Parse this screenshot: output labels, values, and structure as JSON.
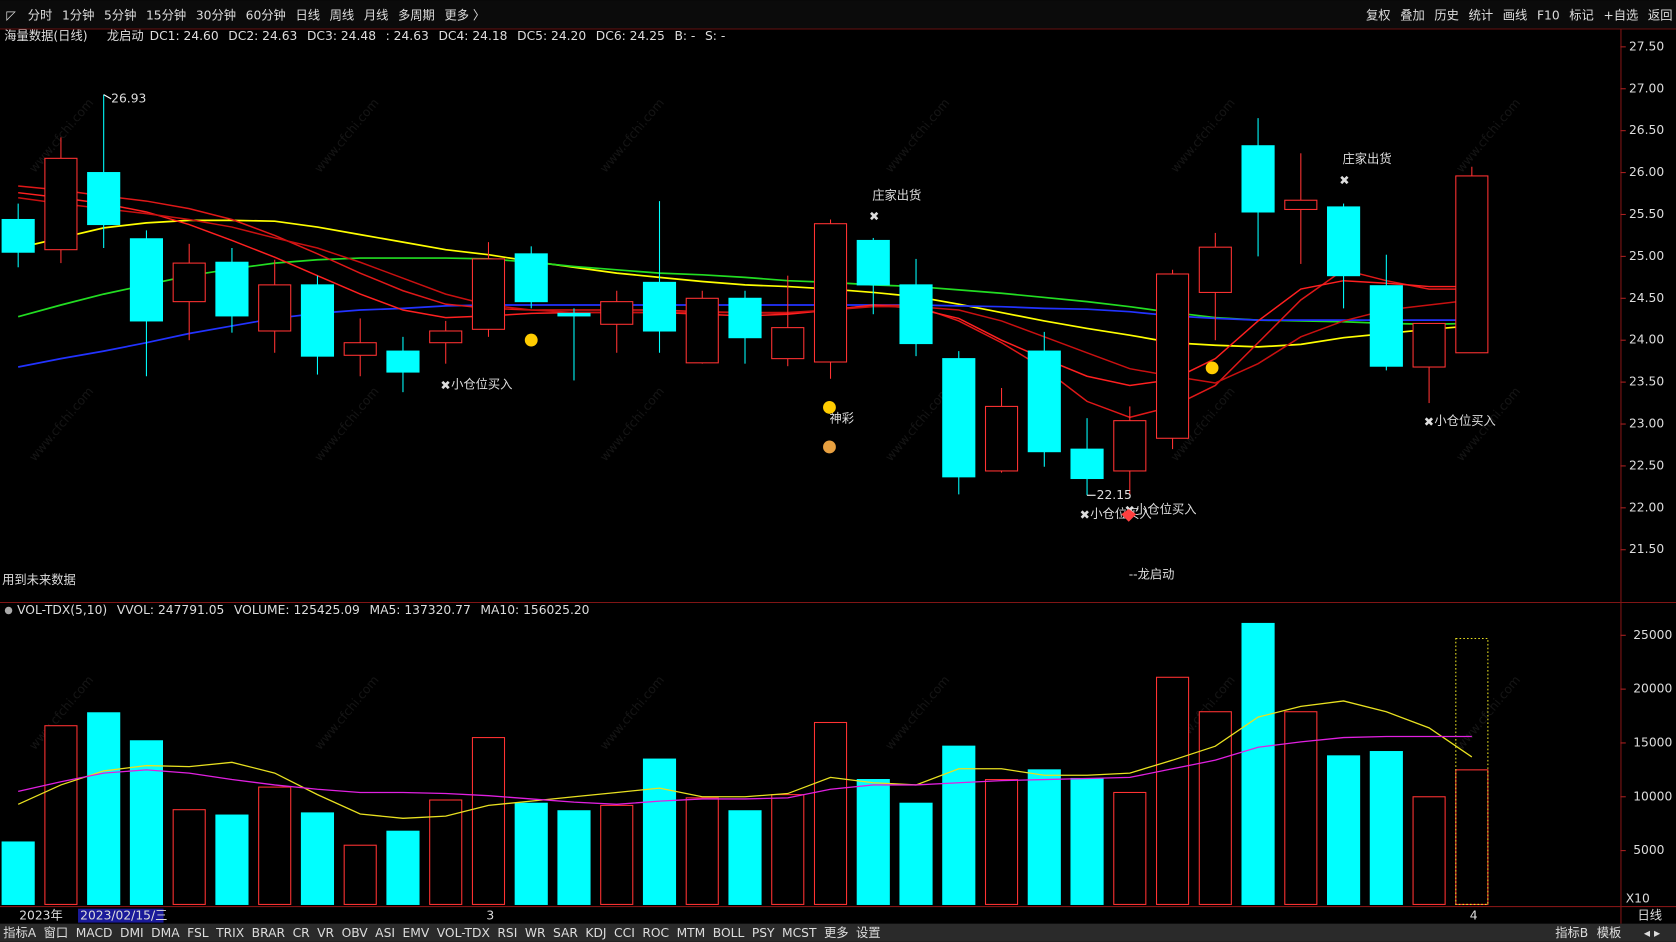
{
  "toolbar": {
    "periods": [
      "分时",
      "1分钟",
      "5分钟",
      "15分钟",
      "30分钟",
      "60分钟",
      "日线",
      "周线",
      "月线",
      "多周期",
      "更多 〉"
    ],
    "active_period": 6,
    "tools": [
      "复权",
      "叠加",
      "历史",
      "统计",
      "画线",
      "F10",
      "标记",
      "+自选",
      "返回"
    ]
  },
  "watermark": "www.cfchi.com",
  "chart_data": [
    {
      "type": "candlestick",
      "title": "海量数据(日线)",
      "subtitle": "龙启动",
      "header": [
        {
          "text": "DC1: 24.60",
          "color": "#ff3c6e"
        },
        {
          "text": "DC2: 24.63",
          "color": "#ff3c6e"
        },
        {
          "text": "DC3: 24.48",
          "color": "#ff3030"
        },
        {
          "text": ": 24.63",
          "color": "#ff3030"
        },
        {
          "text": "DC4: 24.18",
          "color": "#ffff00"
        },
        {
          "text": "DC5: 24.20",
          "color": "#33ff33"
        },
        {
          "text": "DC6: 24.25",
          "color": "#2244ff"
        },
        {
          "text": "B: -",
          "color": "#ffff00"
        },
        {
          "text": "S: -",
          "color": "#33ff33"
        }
      ],
      "up_color": "#ff3232",
      "down_color": "#00ffff",
      "open": [
        25.44,
        25.08,
        26.0,
        25.21,
        24.46,
        24.93,
        24.11,
        24.66,
        23.82,
        23.87,
        23.97,
        24.13,
        25.03,
        24.32,
        24.19,
        24.69,
        23.73,
        24.5,
        23.78,
        23.74,
        25.19,
        24.66,
        23.78,
        22.44,
        23.87,
        22.7,
        22.44,
        22.83,
        24.57,
        26.32,
        25.56,
        25.59,
        24.65,
        23.68,
        23.85
      ],
      "high": [
        25.63,
        26.42,
        26.93,
        25.31,
        25.15,
        25.1,
        24.96,
        24.77,
        24.26,
        24.04,
        24.23,
        25.17,
        25.12,
        24.38,
        24.59,
        25.66,
        24.59,
        24.59,
        24.77,
        25.44,
        25.22,
        24.97,
        23.87,
        23.43,
        24.1,
        23.07,
        23.21,
        24.84,
        25.28,
        26.65,
        26.23,
        25.63,
        25.02,
        24.2,
        26.07
      ],
      "low": [
        24.87,
        24.92,
        25.1,
        23.57,
        24.0,
        24.09,
        23.85,
        23.59,
        23.57,
        23.38,
        23.72,
        24.04,
        24.38,
        23.52,
        23.85,
        23.85,
        23.72,
        23.72,
        23.69,
        23.54,
        24.31,
        23.81,
        22.16,
        22.42,
        22.49,
        22.15,
        22.16,
        22.7,
        24.0,
        25.0,
        24.91,
        24.38,
        23.64,
        23.25,
        23.85
      ],
      "close": [
        25.05,
        26.17,
        25.38,
        24.23,
        24.92,
        24.29,
        24.66,
        23.81,
        23.97,
        23.62,
        24.11,
        24.97,
        24.46,
        24.29,
        24.46,
        24.11,
        24.5,
        24.03,
        24.15,
        25.39,
        24.66,
        23.96,
        22.37,
        23.21,
        22.67,
        22.35,
        23.04,
        24.79,
        25.11,
        25.53,
        25.67,
        24.77,
        23.69,
        24.2,
        25.96
      ],
      "series": [
        {
          "color": "#ffff00",
          "values": [
            25.1,
            25.22,
            25.34,
            25.4,
            25.43,
            25.43,
            25.42,
            25.35,
            25.26,
            25.17,
            25.08,
            25.02,
            24.94,
            24.87,
            24.8,
            24.75,
            24.7,
            24.66,
            24.64,
            24.61,
            24.57,
            24.52,
            24.43,
            24.33,
            24.23,
            24.14,
            24.06,
            23.97,
            23.94,
            23.92,
            23.95,
            24.03,
            24.08,
            24.13,
            24.17
          ]
        },
        {
          "color": "#22dd22",
          "values": [
            24.28,
            24.42,
            24.55,
            24.66,
            24.77,
            24.85,
            24.92,
            24.96,
            24.98,
            24.98,
            24.98,
            24.97,
            24.93,
            24.88,
            24.84,
            24.8,
            24.78,
            24.75,
            24.71,
            24.69,
            24.66,
            24.64,
            24.6,
            24.56,
            24.51,
            24.46,
            24.4,
            24.33,
            24.27,
            24.24,
            24.23,
            24.22,
            24.2,
            24.19,
            24.2
          ]
        },
        {
          "color": "#2233ff",
          "values": [
            23.68,
            23.78,
            23.87,
            23.97,
            24.08,
            24.17,
            24.26,
            24.32,
            24.36,
            24.38,
            24.41,
            24.42,
            24.42,
            24.42,
            24.42,
            24.42,
            24.42,
            24.42,
            24.42,
            24.42,
            24.42,
            24.42,
            24.41,
            24.4,
            24.38,
            24.37,
            24.34,
            24.29,
            24.26,
            24.24,
            24.24,
            24.24,
            24.24,
            24.24,
            24.24
          ]
        },
        {
          "color": "#e01818",
          "values": [
            25.84,
            25.79,
            25.72,
            25.66,
            25.57,
            25.44,
            25.25,
            25.03,
            24.8,
            24.59,
            24.43,
            24.38,
            24.36,
            24.36,
            24.36,
            24.36,
            24.34,
            24.33,
            24.32,
            24.36,
            24.42,
            24.41,
            24.23,
            23.97,
            23.66,
            23.27,
            23.08,
            23.21,
            23.46,
            23.97,
            24.48,
            24.84,
            24.71,
            24.61,
            24.61
          ]
        },
        {
          "color": "#ff2020",
          "values": [
            25.76,
            25.7,
            25.63,
            25.53,
            25.38,
            25.19,
            24.99,
            24.77,
            24.55,
            24.36,
            24.27,
            24.29,
            24.32,
            24.33,
            24.33,
            24.33,
            24.31,
            24.29,
            24.31,
            24.36,
            24.42,
            24.38,
            24.26,
            24.0,
            23.78,
            23.57,
            23.46,
            23.53,
            23.78,
            24.23,
            24.61,
            24.71,
            24.68,
            24.64,
            24.64
          ]
        },
        {
          "color": "#c81010",
          "values": [
            25.7,
            25.63,
            25.57,
            25.51,
            25.44,
            25.35,
            25.22,
            25.1,
            24.93,
            24.74,
            24.55,
            24.42,
            24.36,
            24.33,
            24.33,
            24.33,
            24.33,
            24.33,
            24.33,
            24.36,
            24.4,
            24.4,
            24.36,
            24.23,
            24.04,
            23.85,
            23.66,
            23.57,
            23.49,
            23.72,
            24.04,
            24.23,
            24.36,
            24.42,
            24.48
          ]
        }
      ],
      "ylim": [
        20.89,
        27.7
      ],
      "yticks": [
        {
          "value": 21.5,
          "label": "21.50"
        },
        {
          "value": 22,
          "label": "22.00"
        },
        {
          "value": 22.5,
          "label": "22.50"
        },
        {
          "value": 23,
          "label": "23.00"
        },
        {
          "value": 23.5,
          "label": "23.50"
        },
        {
          "value": 24,
          "label": "24.00"
        },
        {
          "value": 24.5,
          "label": "24.50"
        },
        {
          "value": 25,
          "label": "25.00"
        },
        {
          "value": 25.5,
          "label": "25.50"
        },
        {
          "value": 26,
          "label": "26.00"
        },
        {
          "value": 26.5,
          "label": "26.50"
        },
        {
          "value": 27,
          "label": "27.00"
        },
        {
          "value": 27.5,
          "label": "27.50"
        }
      ],
      "signals": [
        {
          "text": "庄家出货",
          "color": "#22dd22"
        },
        {
          "text": "庄家出货",
          "color": "#22dd22"
        },
        {
          "text": "小仓位买入",
          "color": "#ff3030"
        },
        {
          "text": "小仓位买入",
          "color": "#ff3030"
        },
        {
          "text": "小仓位买入",
          "color": "#ff3030"
        },
        {
          "text": "小仓位买入",
          "color": "#ff3030"
        },
        {
          "text": "神彩",
          "color": "#ffffff"
        },
        {
          "text": "--龙启动",
          "color": "#e020e0"
        },
        {
          "text": "用到未来数据",
          "color": "#888888"
        }
      ]
    },
    {
      "type": "bar",
      "header": [
        {
          "text": "VOL-TDX(5,10)",
          "color": "#ffffff"
        },
        {
          "text": "VVOL: 247791.05",
          "color": "#ffffff"
        },
        {
          "text": "VOLUME: 125425.09",
          "color": "#ffff00"
        },
        {
          "text": "MA5: 137320.77",
          "color": "#ffff00"
        },
        {
          "text": "MA10: 156025.20",
          "color": "#ff33ff"
        }
      ],
      "values": [
        5800,
        16600,
        17800,
        15200,
        8800,
        8300,
        10900,
        8500,
        5500,
        6800,
        9700,
        15500,
        9400,
        8700,
        9200,
        13500,
        9900,
        8700,
        10200,
        16900,
        11600,
        9400,
        14700,
        11600,
        12500,
        11700,
        10400,
        21100,
        17900,
        26100,
        17900,
        13800,
        14200,
        10000,
        12500
      ],
      "projected": 24700,
      "series": [
        {
          "color": "#e8e020",
          "values": [
            9300,
            11100,
            12400,
            12900,
            12800,
            13200,
            12200,
            10200,
            8400,
            8000,
            8200,
            9200,
            9600,
            10000,
            10400,
            10800,
            10000,
            10000,
            10300,
            11800,
            11300,
            11100,
            12600,
            12600,
            12000,
            12000,
            12200,
            13400,
            14700,
            17400,
            18400,
            18900,
            17900,
            16400,
            13700
          ]
        },
        {
          "color": "#e020e0",
          "values": [
            10500,
            11400,
            12200,
            12500,
            12200,
            11600,
            11100,
            10700,
            10400,
            10400,
            10300,
            10100,
            9800,
            9500,
            9300,
            9600,
            9800,
            9800,
            9900,
            10700,
            11100,
            11100,
            11300,
            11500,
            11600,
            11700,
            11800,
            12600,
            13400,
            14600,
            15100,
            15500,
            15600,
            15600,
            15600
          ]
        }
      ],
      "ylim": [
        0,
        27900
      ],
      "yticks": [
        5000,
        10000,
        15000,
        20000,
        25000
      ],
      "scale_note": "X10"
    }
  ],
  "x_axis": {
    "labels": [
      "2023年",
      "2023/02/15/三",
      "3",
      "4"
    ],
    "period": "日线"
  },
  "bottom_bar": {
    "items": [
      "指标A",
      "窗口",
      "MACD",
      "DMI",
      "DMA",
      "FSL",
      "TRIX",
      "BRAR",
      "CR",
      "VR",
      "OBV",
      "ASI",
      "EMV",
      "VOL-TDX",
      "RSI",
      "WR",
      "SAR",
      "KDJ",
      "CCI",
      "ROC",
      "MTM",
      "BOLL",
      "PSY",
      "MCST",
      "更多",
      "设置"
    ],
    "active_item": 13,
    "right": [
      "指标B",
      "模板"
    ]
  }
}
